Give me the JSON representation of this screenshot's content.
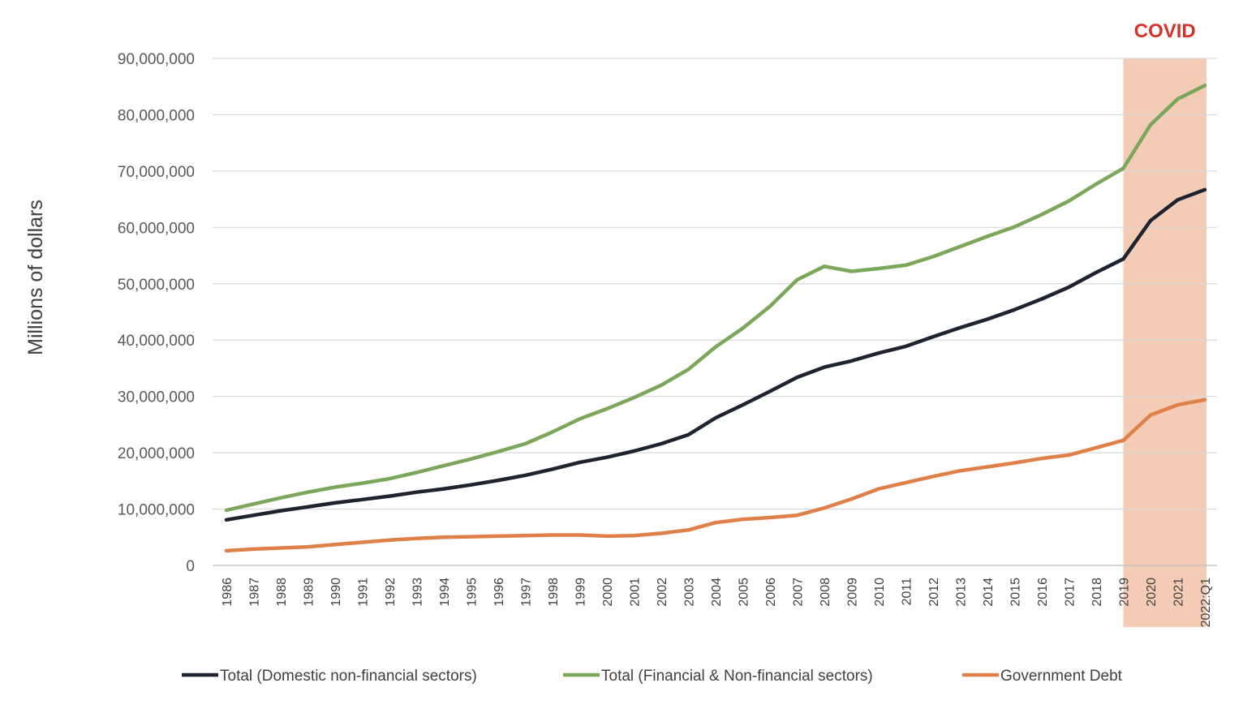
{
  "chart_data": {
    "type": "line",
    "title": "",
    "xlabel": "",
    "ylabel": "Millions of dollars",
    "ylim": [
      0,
      90000000
    ],
    "yticks": [
      0,
      10000000,
      20000000,
      30000000,
      40000000,
      50000000,
      60000000,
      70000000,
      80000000,
      90000000
    ],
    "ytick_labels": [
      "0",
      "10,000,000",
      "20,000,000",
      "30,000,000",
      "40,000,000",
      "50,000,000",
      "60,000,000",
      "70,000,000",
      "80,000,000",
      "90,000,000"
    ],
    "grid": true,
    "categories": [
      "1986",
      "1987",
      "1988",
      "1989",
      "1990",
      "1991",
      "1992",
      "1993",
      "1994",
      "1995",
      "1996",
      "1997",
      "1998",
      "1999",
      "2000",
      "2001",
      "2002",
      "2003",
      "2004",
      "2005",
      "2006",
      "2007",
      "2008",
      "2009",
      "2010",
      "2011",
      "2012",
      "2013",
      "2014",
      "2015",
      "2016",
      "2017",
      "2018",
      "2019",
      "2020",
      "2021",
      "2022:Q1"
    ],
    "legend_position": "bottom",
    "series": [
      {
        "name": "Total (Domestic non-financial sectors)",
        "color": "#1f2330",
        "values": [
          8100000,
          8900000,
          9700000,
          10400000,
          11100000,
          11700000,
          12300000,
          13000000,
          13600000,
          14300000,
          15100000,
          16000000,
          17100000,
          18300000,
          19200000,
          20300000,
          21600000,
          23200000,
          26200000,
          28500000,
          30900000,
          33400000,
          35200000,
          36300000,
          37700000,
          38900000,
          40600000,
          42200000,
          43700000,
          45400000,
          47300000,
          49400000,
          52000000,
          54400000,
          61200000,
          64900000,
          66700000
        ]
      },
      {
        "name": "Total (Financial & Non-financial sectors)",
        "color": "#7ba75a",
        "values": [
          9800000,
          10900000,
          12000000,
          13000000,
          13900000,
          14600000,
          15400000,
          16500000,
          17700000,
          18900000,
          20200000,
          21600000,
          23700000,
          26000000,
          27800000,
          29800000,
          32000000,
          34800000,
          38800000,
          42100000,
          46000000,
          50700000,
          53100000,
          52200000,
          52700000,
          53300000,
          54800000,
          56600000,
          58400000,
          60100000,
          62300000,
          64700000,
          67700000,
          70500000,
          78200000,
          82800000,
          85200000
        ]
      },
      {
        "name": "Government Debt",
        "color": "#df8049",
        "values": [
          2600000,
          2900000,
          3100000,
          3300000,
          3700000,
          4100000,
          4500000,
          4800000,
          5000000,
          5100000,
          5200000,
          5300000,
          5400000,
          5400000,
          5200000,
          5300000,
          5700000,
          6300000,
          7600000,
          8200000,
          8500000,
          8900000,
          10200000,
          11800000,
          13600000,
          14700000,
          15800000,
          16800000,
          17500000,
          18200000,
          19000000,
          19600000,
          20900000,
          22200000,
          26700000,
          28500000,
          29400000
        ]
      }
    ],
    "annotations": [
      {
        "text": "COVID",
        "from": "2019",
        "to": "2022:Q1",
        "color": "#f4cbb5"
      }
    ]
  }
}
